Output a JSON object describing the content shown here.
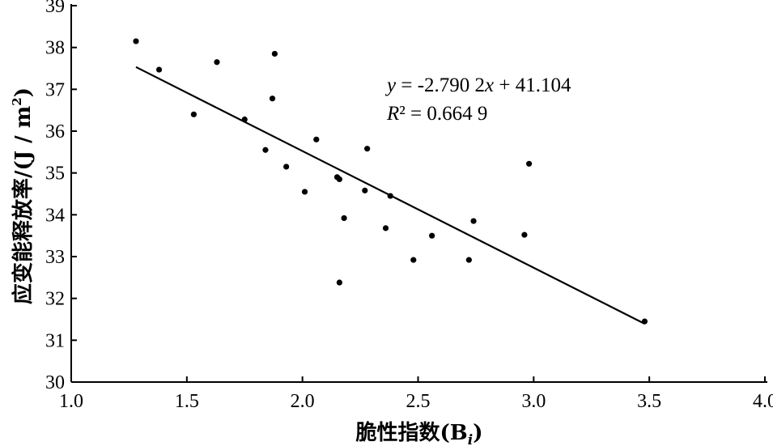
{
  "chart_data": {
    "type": "scatter",
    "title": "",
    "xlabel": "脆性指数(B",
    "xlabel_sub": "i",
    "xlabel_close": ")",
    "ylabel": "应变能释放率/(J / m",
    "ylabel_sup": "2",
    "ylabel_close": ")",
    "xlim": [
      1.0,
      4.0
    ],
    "ylim": [
      30,
      39
    ],
    "xticks": [
      "1.0",
      "1.5",
      "2.0",
      "2.5",
      "3.0",
      "3.5",
      "4.0"
    ],
    "yticks": [
      "30",
      "31",
      "32",
      "33",
      "34",
      "35",
      "36",
      "37",
      "38",
      "39"
    ],
    "grid": false,
    "points": [
      {
        "x": 1.28,
        "y": 38.15
      },
      {
        "x": 1.38,
        "y": 37.47
      },
      {
        "x": 1.53,
        "y": 36.4
      },
      {
        "x": 1.63,
        "y": 37.65
      },
      {
        "x": 1.75,
        "y": 36.28
      },
      {
        "x": 1.84,
        "y": 35.55
      },
      {
        "x": 1.87,
        "y": 36.78
      },
      {
        "x": 1.88,
        "y": 37.85
      },
      {
        "x": 1.93,
        "y": 35.15
      },
      {
        "x": 2.01,
        "y": 34.55
      },
      {
        "x": 2.06,
        "y": 35.8
      },
      {
        "x": 2.15,
        "y": 34.9
      },
      {
        "x": 2.16,
        "y": 34.85
      },
      {
        "x": 2.16,
        "y": 32.38
      },
      {
        "x": 2.18,
        "y": 33.92
      },
      {
        "x": 2.27,
        "y": 34.58
      },
      {
        "x": 2.28,
        "y": 35.58
      },
      {
        "x": 2.36,
        "y": 33.68
      },
      {
        "x": 2.38,
        "y": 34.45
      },
      {
        "x": 2.48,
        "y": 32.92
      },
      {
        "x": 2.56,
        "y": 33.5
      },
      {
        "x": 2.72,
        "y": 32.92
      },
      {
        "x": 2.74,
        "y": 33.85
      },
      {
        "x": 2.96,
        "y": 33.52
      },
      {
        "x": 2.98,
        "y": 35.22
      },
      {
        "x": 3.48,
        "y": 31.45
      }
    ],
    "fit_line": {
      "x": [
        1.28,
        3.48
      ],
      "slope": -2.7902,
      "intercept": 41.104
    },
    "annotation": {
      "eq_y": "y",
      "eq_rest": " = -2.790 2",
      "eq_x": "x",
      "eq_tail": " + 41.104",
      "r2_r": "R",
      "r2_rest": "² = 0.664 9"
    }
  }
}
